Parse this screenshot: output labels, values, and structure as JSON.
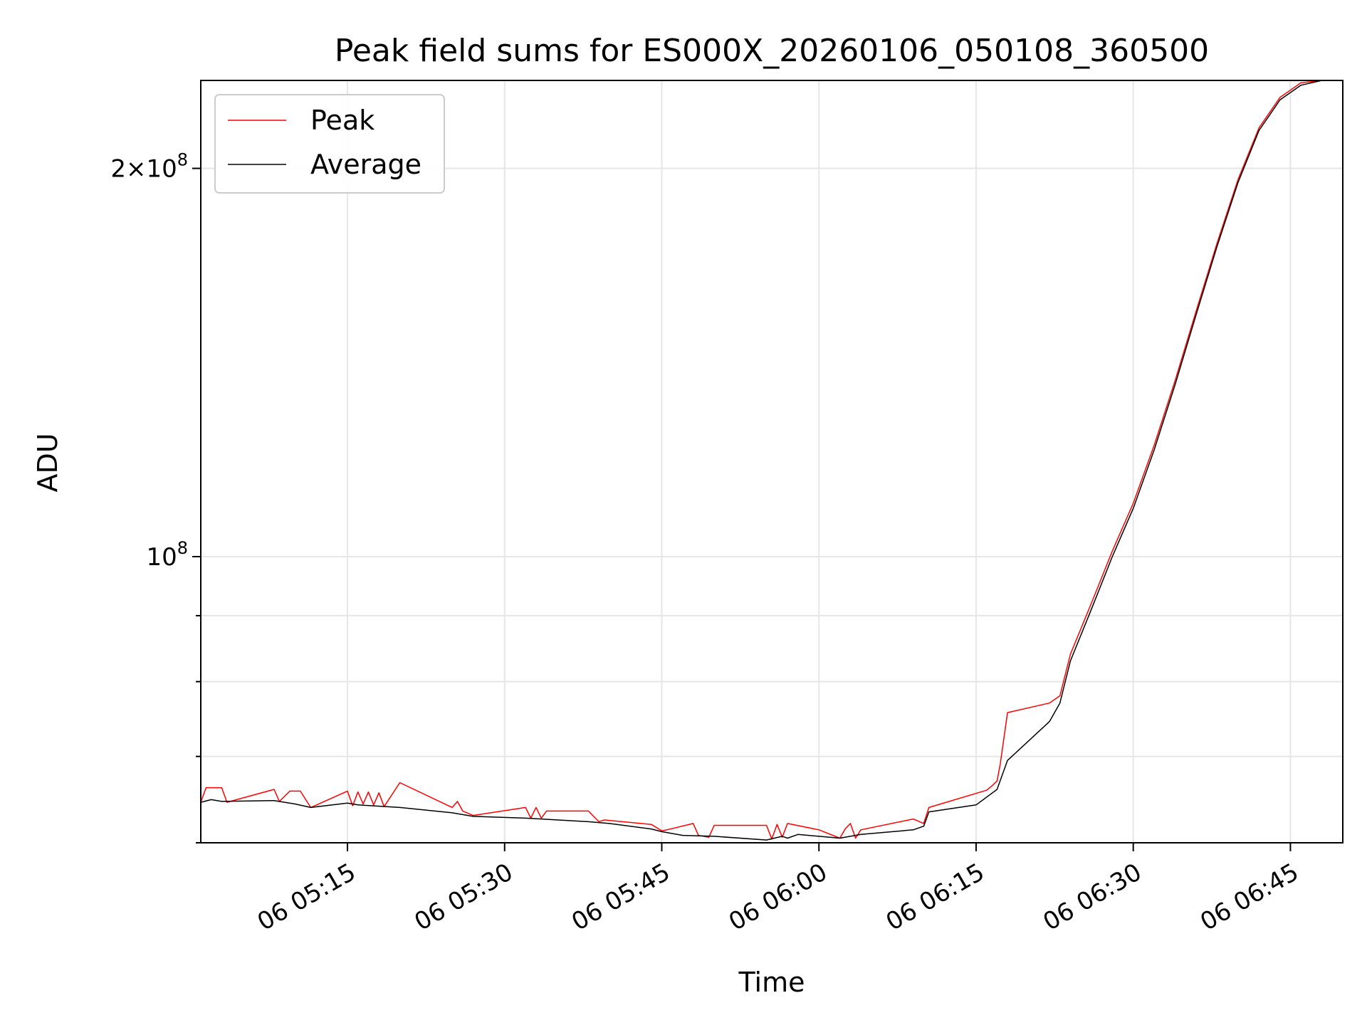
{
  "chart_data": {
    "type": "line",
    "title": "Peak field sums for ES000X_20260106_050108_360500",
    "xlabel": "Time",
    "ylabel": "ADU",
    "yscale": "log",
    "xlim": [
      "06 05:01",
      "06 06:50"
    ],
    "ylim": [
      60000000,
      234000000
    ],
    "grid": true,
    "legend_position": "upper-left",
    "x_ticks": [
      "06 05:15",
      "06 05:30",
      "06 05:45",
      "06 06:00",
      "06 06:15",
      "06 06:30",
      "06 06:45"
    ],
    "y_major_ticks": [
      {
        "value": 100000000,
        "base": "10",
        "exp": "8"
      },
      {
        "value": 200000000,
        "prefix": "2×",
        "base": "10",
        "exp": "8"
      }
    ],
    "y_minor_ticks": [
      60000000,
      70000000,
      80000000,
      90000000
    ],
    "series": [
      {
        "name": "Peak",
        "color": "#ff0000",
        "points": [
          [
            "06 05:01",
            64500000
          ],
          [
            "06 05:01.5",
            66200000
          ],
          [
            "06 05:03",
            66200000
          ],
          [
            "06 05:03.5",
            64500000
          ],
          [
            "06 05:08",
            66000000
          ],
          [
            "06 05:08.5",
            64600000
          ],
          [
            "06 05:09.5",
            65800000
          ],
          [
            "06 05:10.5",
            65800000
          ],
          [
            "06 05:11.5",
            63900000
          ],
          [
            "06 05:15",
            65800000
          ],
          [
            "06 05:15.5",
            64100000
          ],
          [
            "06 05:16",
            65700000
          ],
          [
            "06 05:16.5",
            64300000
          ],
          [
            "06 05:17",
            65700000
          ],
          [
            "06 05:17.5",
            64200000
          ],
          [
            "06 05:18",
            65600000
          ],
          [
            "06 05:18.5",
            64000000
          ],
          [
            "06 05:20",
            66800000
          ],
          [
            "06 05:25",
            63900000
          ],
          [
            "06 05:25.5",
            64600000
          ],
          [
            "06 05:26",
            63500000
          ],
          [
            "06 05:27",
            63000000
          ],
          [
            "06 05:32",
            63900000
          ],
          [
            "06 05:32.5",
            62700000
          ],
          [
            "06 05:33",
            63900000
          ],
          [
            "06 05:33.5",
            62700000
          ],
          [
            "06 05:34",
            63500000
          ],
          [
            "06 05:38",
            63500000
          ],
          [
            "06 05:39",
            62300000
          ],
          [
            "06 05:39.5",
            62500000
          ],
          [
            "06 05:44",
            62000000
          ],
          [
            "06 05:45",
            61300000
          ],
          [
            "06 05:45.5",
            61400000
          ],
          [
            "06 05:48",
            62100000
          ],
          [
            "06 05:48.5",
            60800000
          ],
          [
            "06 05:49.5",
            60600000
          ],
          [
            "06 05:50",
            61900000
          ],
          [
            "06 05:55",
            61900000
          ],
          [
            "06 05:55.5",
            60400000
          ],
          [
            "06 05:56",
            62000000
          ],
          [
            "06 05:56.5",
            60600000
          ],
          [
            "06 05:57",
            62100000
          ],
          [
            "06 06:00",
            61400000
          ],
          [
            "06 06:02",
            60500000
          ],
          [
            "06 06:02.5",
            61500000
          ],
          [
            "06 06:03",
            62100000
          ],
          [
            "06 06:03.5",
            60500000
          ],
          [
            "06 06:04",
            61400000
          ],
          [
            "06 06:09",
            62600000
          ],
          [
            "06 06:10",
            62100000
          ],
          [
            "06 06:10.5",
            63900000
          ],
          [
            "06 06:16",
            65900000
          ],
          [
            "06 06:16.5",
            66400000
          ],
          [
            "06 06:17",
            67000000
          ],
          [
            "06 06:17.3",
            69000000
          ],
          [
            "06 06:18",
            75700000
          ],
          [
            "06 06:22",
            77000000
          ],
          [
            "06 06:23",
            78000000
          ],
          [
            "06 06:24",
            84000000
          ],
          [
            "06 06:26",
            92000000
          ],
          [
            "06 06:28",
            101000000
          ],
          [
            "06 06:30",
            110000000
          ],
          [
            "06 06:32",
            122000000
          ],
          [
            "06 06:34",
            137000000
          ],
          [
            "06 06:36",
            155000000
          ],
          [
            "06 06:38",
            175000000
          ],
          [
            "06 06:40",
            196000000
          ],
          [
            "06 06:42",
            215000000
          ],
          [
            "06 06:44",
            227000000
          ],
          [
            "06 06:46",
            233000000
          ],
          [
            "06 06:48",
            234000000
          ],
          [
            "06 06:50",
            234000000
          ]
        ]
      },
      {
        "name": "Average",
        "color": "#000000",
        "points": [
          [
            "06 05:01",
            64500000
          ],
          [
            "06 05:02",
            64800000
          ],
          [
            "06 05:03",
            64600000
          ],
          [
            "06 05:08",
            64700000
          ],
          [
            "06 05:10",
            64300000
          ],
          [
            "06 05:11.5",
            63900000
          ],
          [
            "06 05:15",
            64400000
          ],
          [
            "06 05:16",
            64200000
          ],
          [
            "06 05:20",
            63900000
          ],
          [
            "06 05:25",
            63300000
          ],
          [
            "06 05:27",
            62900000
          ],
          [
            "06 05:32",
            62700000
          ],
          [
            "06 05:35",
            62500000
          ],
          [
            "06 05:38",
            62300000
          ],
          [
            "06 05:40",
            62100000
          ],
          [
            "06 05:44",
            61500000
          ],
          [
            "06 05:45",
            61200000
          ],
          [
            "06 05:47",
            60800000
          ],
          [
            "06 05:50",
            60700000
          ],
          [
            "06 05:55",
            60300000
          ],
          [
            "06 05:56.5",
            60700000
          ],
          [
            "06 05:57",
            60500000
          ],
          [
            "06 05:58",
            60900000
          ],
          [
            "06 06:02",
            60500000
          ],
          [
            "06 06:04",
            60900000
          ],
          [
            "06 06:09",
            61400000
          ],
          [
            "06 06:10",
            61800000
          ],
          [
            "06 06:10.5",
            63400000
          ],
          [
            "06 06:15",
            64200000
          ],
          [
            "06 06:17",
            66000000
          ],
          [
            "06 06:18",
            69500000
          ],
          [
            "06 06:22",
            74500000
          ],
          [
            "06 06:23",
            77000000
          ],
          [
            "06 06:24",
            83000000
          ],
          [
            "06 06:26",
            91000000
          ],
          [
            "06 06:28",
            100000000
          ],
          [
            "06 06:30",
            109000000
          ],
          [
            "06 06:32",
            121000000
          ],
          [
            "06 06:34",
            136000000
          ],
          [
            "06 06:36",
            154000000
          ],
          [
            "06 06:38",
            174000000
          ],
          [
            "06 06:40",
            195000000
          ],
          [
            "06 06:42",
            214000000
          ],
          [
            "06 06:44",
            226000000
          ],
          [
            "06 06:46",
            232000000
          ],
          [
            "06 06:48",
            234000000
          ],
          [
            "06 06:50",
            234000000
          ]
        ]
      }
    ]
  }
}
